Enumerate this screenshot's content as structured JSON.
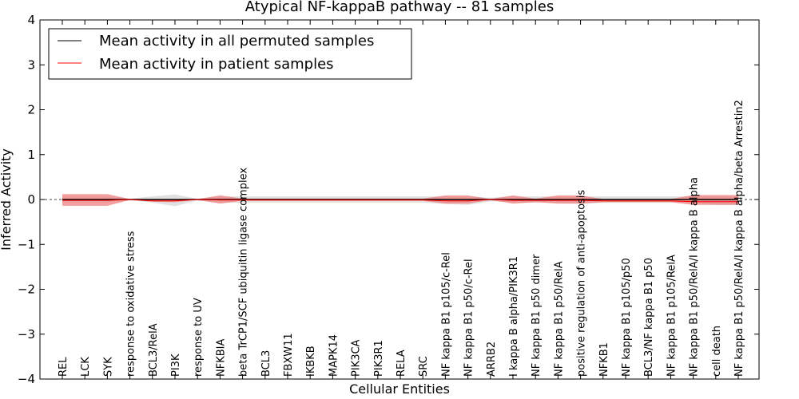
{
  "chart_data": {
    "type": "line",
    "title": "Atypical NF-kappaB pathway -- 81 samples",
    "xlabel": "Cellular Entities",
    "ylabel": "Inferred Activity",
    "ylim": [
      -4,
      4
    ],
    "yticks": [
      -4,
      -3,
      -2,
      -1,
      0,
      1,
      2,
      3,
      4
    ],
    "ytick_labels": [
      "−4",
      "−3",
      "−2",
      "−1",
      "0",
      "1",
      "2",
      "3",
      "4"
    ],
    "legend_position": "top-left",
    "categories": [
      "REL",
      "LCK",
      "SYK",
      "response to oxidative stress",
      "BCL3/RelA",
      "PI3K",
      "response to UV",
      "NFKBIA",
      "beta TrCP1/SCF ubiquitin ligase complex",
      "BCL3",
      "FBXW11",
      "IKBKB",
      "MAPK14",
      "PIK3CA",
      "PIK3R1",
      "RELA",
      "SRC",
      "NF kappa B1 p105/c-Rel",
      "NF kappa B1 p50/c-Rel",
      "ARRB2",
      "I kappa B alpha/PIK3R1",
      "NF kappa B1 p50 dimer",
      "NF kappa B1 p50/RelA",
      "positive regulation of anti-apoptosis",
      "NFKB1",
      "NF kappa B1 p105/p50",
      "BCL3/NF kappa B1 p50",
      "NF kappa B1 p105/RelA",
      "NF kappa B1 p50/RelA/I kappa B alpha",
      "cell death",
      "NF kappa B1 p50/RelA/I kappa B alpha/beta Arrestin2"
    ],
    "series": [
      {
        "name": "Mean activity in all permuted samples",
        "color": "#000000",
        "values": [
          0,
          0,
          0,
          0,
          0,
          0,
          0,
          0,
          0,
          0,
          0,
          0,
          0,
          0,
          0,
          0,
          0,
          0,
          0,
          0,
          0,
          0,
          0,
          0,
          0,
          0,
          0,
          0,
          0,
          0,
          0
        ],
        "band_upper": [
          0.06,
          0.06,
          0.06,
          0.02,
          0.07,
          0.11,
          0.02,
          0.07,
          0.07,
          0.07,
          0.07,
          0.07,
          0.07,
          0.07,
          0.07,
          0.07,
          0.07,
          0.07,
          0.07,
          0.04,
          0.07,
          0.07,
          0.07,
          0.07,
          0.07,
          0.07,
          0.07,
          0.07,
          0.07,
          0.07,
          0.07
        ],
        "band_lower": [
          -0.06,
          -0.06,
          -0.06,
          -0.02,
          -0.07,
          -0.15,
          -0.02,
          -0.07,
          -0.07,
          -0.07,
          -0.07,
          -0.07,
          -0.07,
          -0.07,
          -0.07,
          -0.07,
          -0.07,
          -0.1,
          -0.12,
          -0.04,
          -0.07,
          -0.07,
          -0.07,
          -0.1,
          -0.07,
          -0.07,
          -0.07,
          -0.07,
          -0.07,
          -0.12,
          -0.12
        ],
        "band_color": "#d6d6d6"
      },
      {
        "name": "Mean activity in patient samples",
        "color": "#ff0000",
        "values": [
          -0.02,
          -0.02,
          -0.02,
          0,
          -0.03,
          -0.03,
          0,
          -0.01,
          -0.01,
          -0.01,
          -0.01,
          -0.01,
          -0.01,
          -0.01,
          -0.01,
          -0.01,
          -0.01,
          -0.03,
          -0.03,
          0,
          -0.02,
          -0.02,
          -0.02,
          -0.02,
          -0.03,
          -0.03,
          -0.03,
          -0.03,
          -0.05,
          -0.05,
          -0.05
        ],
        "band_upper": [
          0.12,
          0.12,
          0.12,
          0.01,
          0.01,
          0.01,
          0.01,
          0.09,
          0.02,
          0.02,
          0.02,
          0.02,
          0.02,
          0.02,
          0.02,
          0.02,
          0.02,
          0.09,
          0.09,
          0.01,
          0.09,
          0.02,
          0.09,
          0.09,
          0.01,
          0.01,
          0.01,
          0.01,
          0.1,
          0.1,
          0.1
        ],
        "band_lower": [
          -0.14,
          -0.14,
          -0.14,
          -0.01,
          -0.05,
          -0.06,
          -0.01,
          -0.09,
          -0.03,
          -0.03,
          -0.03,
          -0.03,
          -0.03,
          -0.03,
          -0.03,
          -0.03,
          -0.03,
          -0.09,
          -0.09,
          -0.01,
          -0.09,
          -0.06,
          -0.09,
          -0.09,
          -0.06,
          -0.06,
          -0.06,
          -0.06,
          -0.12,
          -0.12,
          -0.12
        ],
        "band_color": "#f08080"
      }
    ]
  }
}
